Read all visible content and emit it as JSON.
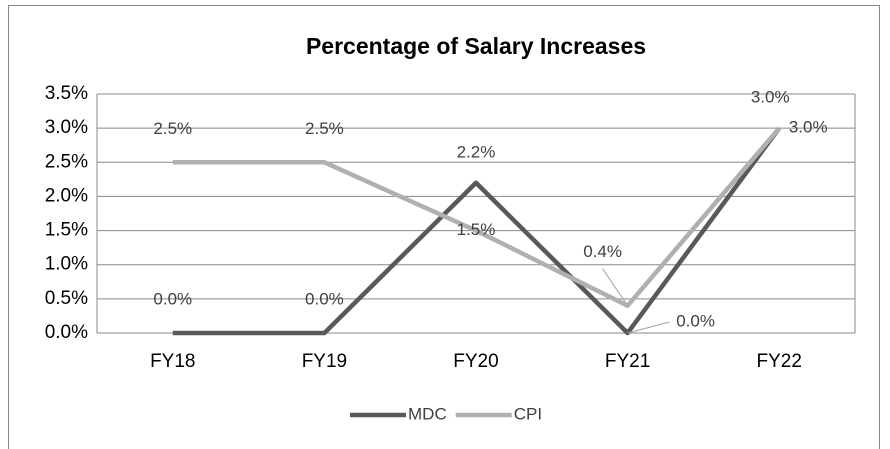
{
  "chart_data": {
    "type": "line",
    "title": "Percentage of Salary Increases",
    "categories": [
      "FY18",
      "FY19",
      "FY20",
      "FY21",
      "FY22"
    ],
    "series": [
      {
        "name": "MDC",
        "color": "#595959",
        "values": [
          0,
          0,
          2.2,
          0,
          3.0
        ],
        "value_labels": [
          "0.0%",
          "0.0%",
          "2.2%",
          "0.0%",
          "3.0%"
        ]
      },
      {
        "name": "CPI",
        "color": "#b0b0b0",
        "values": [
          2.5,
          2.5,
          1.5,
          0.4,
          3.0
        ],
        "value_labels": [
          "2.5%",
          "2.5%",
          "1.5%",
          "0.4%",
          "3.0%"
        ]
      }
    ],
    "ylim": [
      0,
      3.5
    ],
    "yticks": [
      {
        "value": 0,
        "label": "0.0%"
      },
      {
        "value": 0.5,
        "label": "0.5%"
      },
      {
        "value": 1,
        "label": "1.0%"
      },
      {
        "value": 1.5,
        "label": "1.5%"
      },
      {
        "value": 2,
        "label": "2.0%"
      },
      {
        "value": 2.5,
        "label": "2.5%"
      },
      {
        "value": 3,
        "label": "3.0%"
      },
      {
        "value": 3.5,
        "label": "3.5%"
      }
    ],
    "grid": true,
    "legend": "bottom"
  }
}
